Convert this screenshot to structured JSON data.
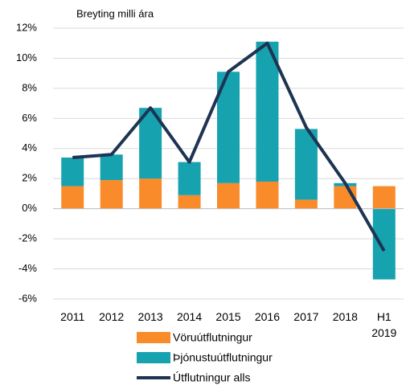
{
  "chart_data": {
    "type": "stacked-bar-line",
    "axis_label": "Breyting milli ára",
    "categories": [
      "2011",
      "2012",
      "2013",
      "2014",
      "2015",
      "2016",
      "2017",
      "2018",
      "H1 2019"
    ],
    "series": [
      {
        "name": "Vöruútflutningur",
        "type": "bar",
        "color": "#f98b2b",
        "values": [
          1.5,
          1.9,
          2.0,
          0.9,
          1.7,
          1.8,
          0.6,
          1.5,
          1.5
        ]
      },
      {
        "name": "Þjónustuútflutningur",
        "type": "bar",
        "color": "#17a2af",
        "values": [
          1.9,
          1.7,
          4.7,
          2.2,
          7.4,
          9.3,
          4.7,
          0.2,
          -4.7
        ]
      },
      {
        "name": "Útflutningur alls",
        "type": "line",
        "color": "#1d3452",
        "values": [
          3.4,
          3.6,
          6.7,
          3.1,
          9.1,
          11.0,
          5.4,
          1.7,
          -2.8
        ]
      }
    ],
    "ylim": [
      -6,
      12
    ],
    "yticks": [
      {
        "value": -6,
        "label": "-6%"
      },
      {
        "value": -4,
        "label": "-4%"
      },
      {
        "value": -2,
        "label": "-2%"
      },
      {
        "value": 0,
        "label": "0%"
      },
      {
        "value": 2,
        "label": "2%"
      },
      {
        "value": 4,
        "label": "4%"
      },
      {
        "value": 6,
        "label": "6%"
      },
      {
        "value": 8,
        "label": "8%"
      },
      {
        "value": 10,
        "label": "10%"
      },
      {
        "value": 12,
        "label": "12%"
      }
    ],
    "grid": true
  }
}
